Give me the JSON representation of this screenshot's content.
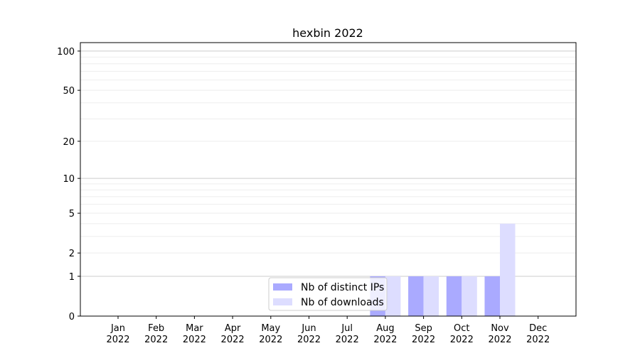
{
  "chart_data": {
    "type": "bar",
    "title": "hexbin 2022",
    "xlabel": "",
    "ylabel": "",
    "yscale": "log10(1+y)",
    "ylim": [
      0,
      116
    ],
    "yticks": [
      0,
      1,
      2,
      5,
      10,
      20,
      50,
      100
    ],
    "ytick_labels": [
      "0",
      "1",
      "2",
      "5",
      "10",
      "20",
      "50",
      "100"
    ],
    "grid": true,
    "legend_position": "lower-center",
    "categories": [
      [
        "Jan",
        "2022"
      ],
      [
        "Feb",
        "2022"
      ],
      [
        "Mar",
        "2022"
      ],
      [
        "Apr",
        "2022"
      ],
      [
        "May",
        "2022"
      ],
      [
        "Jun",
        "2022"
      ],
      [
        "Jul",
        "2022"
      ],
      [
        "Aug",
        "2022"
      ],
      [
        "Sep",
        "2022"
      ],
      [
        "Oct",
        "2022"
      ],
      [
        "Nov",
        "2022"
      ],
      [
        "Dec",
        "2022"
      ]
    ],
    "series": [
      {
        "name": "Nb of distinct IPs",
        "color": "#aaaaff",
        "values": [
          0,
          0,
          0,
          0,
          0,
          0,
          0,
          1,
          1,
          1,
          1,
          0
        ]
      },
      {
        "name": "Nb of downloads",
        "color": "#ddddff",
        "values": [
          0,
          0,
          0,
          0,
          0,
          0,
          0,
          1,
          1,
          1,
          4,
          0
        ]
      }
    ]
  }
}
